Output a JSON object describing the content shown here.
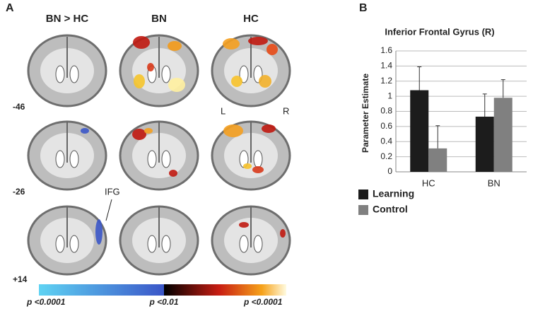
{
  "panel_a": {
    "panel_label": "A",
    "columns": [
      "BN > HC",
      "BN",
      "HC"
    ],
    "rows": [
      "-46",
      "-26",
      "+14"
    ],
    "annotations": {
      "ifg": "IFG",
      "left": "L",
      "right": "R"
    },
    "colorbar_labels": [
      "p <0.0001",
      "p <0.01",
      "p <0.0001"
    ]
  },
  "chart_data": {
    "type": "bar",
    "panel_label": "B",
    "title": "Inferior Frontal Gyrus (R)",
    "y_label": "Parameter Estimate",
    "categories": [
      "HC",
      "BN"
    ],
    "series": [
      {
        "name": "Learning",
        "color": "#1c1c1c",
        "values": [
          1.08,
          0.73
        ],
        "errors": [
          0.31,
          0.3
        ]
      },
      {
        "name": "Control",
        "color": "#808080",
        "values": [
          0.31,
          0.98
        ],
        "errors": [
          0.3,
          0.24
        ]
      }
    ],
    "ylim": [
      0,
      1.6
    ],
    "yticks": [
      0,
      0.2,
      0.4,
      0.6,
      0.8,
      1,
      1.2,
      1.4,
      1.6
    ]
  }
}
